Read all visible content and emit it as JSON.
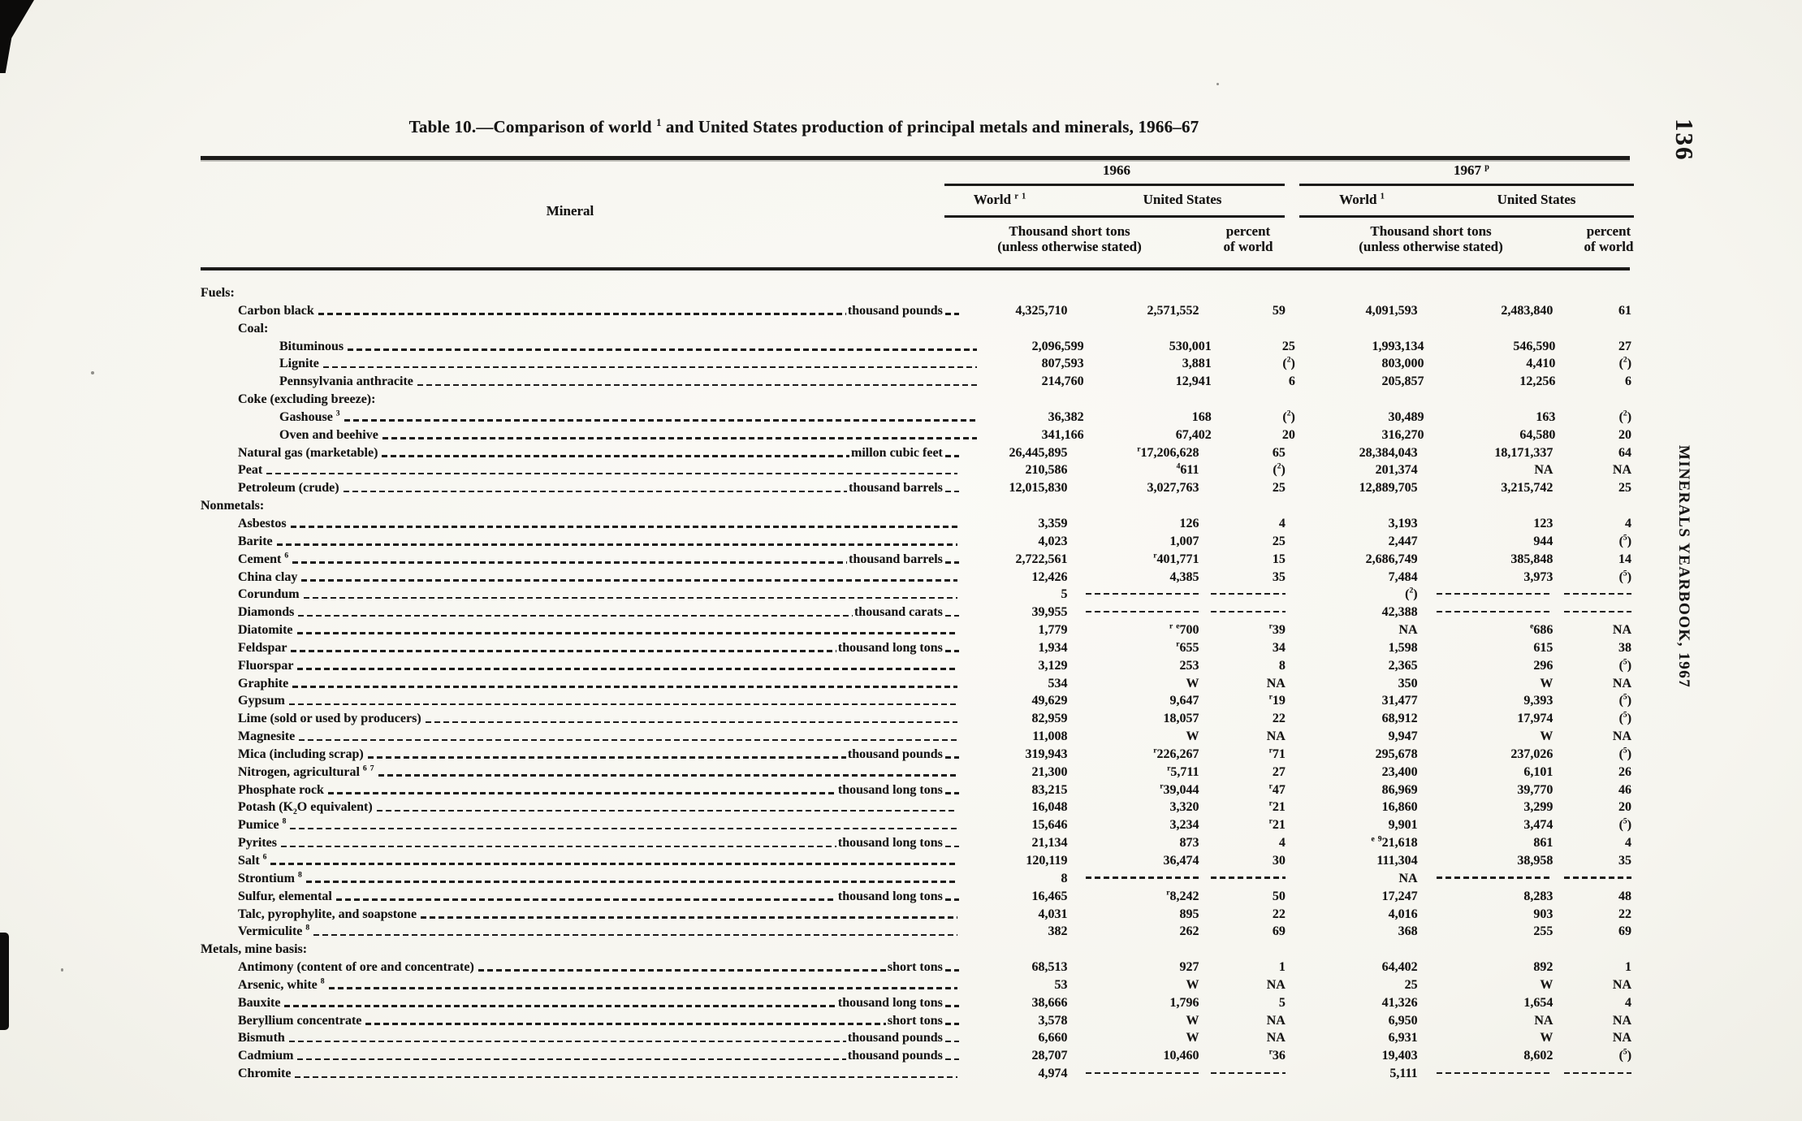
{
  "page": {
    "number": "136",
    "margin_title": "MINERALS YEARBOOK, 1967"
  },
  "table": {
    "title": "Table 10.—Comparison of world {1} and United States production of principal metals and minerals, 1966–67",
    "mineral_header": "Mineral",
    "year_groups": [
      {
        "year": "1966",
        "world": "World {r} {1}",
        "us": "United States"
      },
      {
        "year": "1967 {p}",
        "world": "World {1}",
        "us": "United States"
      }
    ],
    "subheaders": {
      "tons_line1": "Thousand short tons",
      "tons_line2": "(unless otherwise stated)",
      "pct_line1": "percent",
      "pct_line2": "of world"
    },
    "rows": [
      {
        "label": "Fuels:",
        "indent": 0,
        "leader": false,
        "values": [
          "",
          "",
          "",
          "",
          "",
          ""
        ]
      },
      {
        "label": "Carbon black",
        "indent": 1,
        "unit": "thousand pounds",
        "values": [
          "4,325,710",
          "2,571,552",
          "59",
          "4,091,593",
          "2,483,840",
          "61"
        ]
      },
      {
        "label": "Coal:",
        "indent": 1,
        "leader": false,
        "values": [
          "",
          "",
          "",
          "",
          "",
          ""
        ]
      },
      {
        "label": "Bituminous",
        "indent": 2,
        "values": [
          "2,096,599",
          "530,001",
          "25",
          "1,993,134",
          "546,590",
          "27"
        ]
      },
      {
        "label": "Lignite",
        "indent": 2,
        "values": [
          "807,593",
          "3,881",
          "({2})",
          "803,000",
          "4,410",
          "({2})"
        ]
      },
      {
        "label": "Pennsylvania anthracite",
        "indent": 2,
        "values": [
          "214,760",
          "12,941",
          "6",
          "205,857",
          "12,256",
          "6"
        ]
      },
      {
        "label": "Coke (excluding breeze):",
        "indent": 1,
        "leader": false,
        "values": [
          "",
          "",
          "",
          "",
          "",
          ""
        ]
      },
      {
        "label": "Gashouse {3}",
        "indent": 2,
        "values": [
          "36,382",
          "168",
          "({2})",
          "30,489",
          "163",
          "({2})"
        ]
      },
      {
        "label": "Oven and beehive",
        "indent": 2,
        "values": [
          "341,166",
          "67,402",
          "20",
          "316,270",
          "64,580",
          "20"
        ]
      },
      {
        "label": "Natural gas (marketable)",
        "indent": 1,
        "unit": "millon cubic feet",
        "values": [
          "26,445,895",
          "{r}17,206,628",
          "65",
          "28,384,043",
          "18,171,337",
          "64"
        ]
      },
      {
        "label": "Peat",
        "indent": 1,
        "values": [
          "210,586",
          "{4}611",
          "({2})",
          "201,374",
          "NA",
          "NA"
        ]
      },
      {
        "label": "Petroleum (crude)",
        "indent": 1,
        "unit": "thousand barrels",
        "values": [
          "12,015,830",
          "3,027,763",
          "25",
          "12,889,705",
          "3,215,742",
          "25"
        ]
      },
      {
        "label": "Nonmetals:",
        "indent": 0,
        "leader": false,
        "values": [
          "",
          "",
          "",
          "",
          "",
          ""
        ]
      },
      {
        "label": "Asbestos",
        "indent": 1,
        "values": [
          "3,359",
          "126",
          "4",
          "3,193",
          "123",
          "4"
        ]
      },
      {
        "label": "Barite",
        "indent": 1,
        "values": [
          "4,023",
          "1,007",
          "25",
          "2,447",
          "944",
          "({5})"
        ]
      },
      {
        "label": "Cement {6}",
        "indent": 1,
        "unit": "thousand barrels",
        "values": [
          "2,722,561",
          "{r}401,771",
          "15",
          "2,686,749",
          "385,848",
          "14"
        ]
      },
      {
        "label": "China clay",
        "indent": 1,
        "values": [
          "12,426",
          "4,385",
          "35",
          "7,484",
          "3,973",
          "({5})"
        ]
      },
      {
        "label": "Corundum",
        "indent": 1,
        "values": [
          "5",
          "~",
          "~",
          "({2})",
          "~",
          "~"
        ]
      },
      {
        "label": "Diamonds",
        "indent": 1,
        "unit": "thousand carats",
        "values": [
          "39,955",
          "~",
          "~",
          "42,388",
          "~",
          "~"
        ]
      },
      {
        "label": "Diatomite",
        "indent": 1,
        "values": [
          "1,779",
          "{r} {e}700",
          "{r}39",
          "NA",
          "{e}686",
          "NA"
        ]
      },
      {
        "label": "Feldspar",
        "indent": 1,
        "unit": "thousand long tons",
        "values": [
          "1,934",
          "{r}655",
          "34",
          "1,598",
          "615",
          "38"
        ]
      },
      {
        "label": "Fluorspar",
        "indent": 1,
        "values": [
          "3,129",
          "253",
          "8",
          "2,365",
          "296",
          "({5})"
        ]
      },
      {
        "label": "Graphite",
        "indent": 1,
        "values": [
          "534",
          "W",
          "NA",
          "350",
          "W",
          "NA"
        ]
      },
      {
        "label": "Gypsum",
        "indent": 1,
        "values": [
          "49,629",
          "9,647",
          "{r}19",
          "31,477",
          "9,393",
          "({5})"
        ]
      },
      {
        "label": "Lime (sold or used by producers)",
        "indent": 1,
        "values": [
          "82,959",
          "18,057",
          "22",
          "68,912",
          "17,974",
          "({5})"
        ]
      },
      {
        "label": "Magnesite",
        "indent": 1,
        "values": [
          "11,008",
          "W",
          "NA",
          "9,947",
          "W",
          "NA"
        ]
      },
      {
        "label": "Mica (including scrap)",
        "indent": 1,
        "unit": "thousand pounds",
        "values": [
          "319,943",
          "{r}226,267",
          "{r}71",
          "295,678",
          "237,026",
          "({5})"
        ]
      },
      {
        "label": "Nitrogen, agricultural {6} {7}",
        "indent": 1,
        "values": [
          "21,300",
          "{r}5,711",
          "27",
          "23,400",
          "6,101",
          "26"
        ]
      },
      {
        "label": "Phosphate rock",
        "indent": 1,
        "unit": "thousand long tons",
        "values": [
          "83,215",
          "{r}39,044",
          "{r}47",
          "86,969",
          "39,770",
          "46"
        ]
      },
      {
        "label": "Potash (K{_2}O equivalent)",
        "indent": 1,
        "values": [
          "16,048",
          "3,320",
          "{r}21",
          "16,860",
          "3,299",
          "20"
        ]
      },
      {
        "label": "Pumice {8}",
        "indent": 1,
        "values": [
          "15,646",
          "3,234",
          "{r}21",
          "9,901",
          "3,474",
          "({5})"
        ]
      },
      {
        "label": "Pyrites",
        "indent": 1,
        "unit": "thousand long tons",
        "values": [
          "21,134",
          "873",
          "4",
          "{e} {9}21,618",
          "861",
          "4"
        ]
      },
      {
        "label": "Salt {6}",
        "indent": 1,
        "values": [
          "120,119",
          "36,474",
          "30",
          "111,304",
          "38,958",
          "35"
        ]
      },
      {
        "label": "Strontium {8}",
        "indent": 1,
        "values": [
          "8",
          "~",
          "~",
          "NA",
          "~",
          "~"
        ]
      },
      {
        "label": "Sulfur, elemental",
        "indent": 1,
        "unit": "thousand long tons",
        "values": [
          "16,465",
          "{r}8,242",
          "50",
          "17,247",
          "8,283",
          "48"
        ]
      },
      {
        "label": "Talc, pyrophylite, and soapstone",
        "indent": 1,
        "values": [
          "4,031",
          "895",
          "22",
          "4,016",
          "903",
          "22"
        ]
      },
      {
        "label": "Vermiculite {8}",
        "indent": 1,
        "values": [
          "382",
          "262",
          "69",
          "368",
          "255",
          "69"
        ]
      },
      {
        "label": "Metals, mine basis:",
        "indent": 0,
        "leader": false,
        "values": [
          "",
          "",
          "",
          "",
          "",
          ""
        ]
      },
      {
        "label": "Antimony (content of ore and concentrate)",
        "indent": 1,
        "unit": "short tons",
        "values": [
          "68,513",
          "927",
          "1",
          "64,402",
          "892",
          "1"
        ]
      },
      {
        "label": "Arsenic, white {8}",
        "indent": 1,
        "values": [
          "53",
          "W",
          "NA",
          "25",
          "W",
          "NA"
        ]
      },
      {
        "label": "Bauxite",
        "indent": 1,
        "unit": "thousand long tons",
        "values": [
          "38,666",
          "1,796",
          "5",
          "41,326",
          "1,654",
          "4"
        ]
      },
      {
        "label": "Beryllium concentrate",
        "indent": 1,
        "unit": "short tons",
        "values": [
          "3,578",
          "W",
          "NA",
          "6,950",
          "NA",
          "NA"
        ]
      },
      {
        "label": "Bismuth",
        "indent": 1,
        "unit": "thousand pounds",
        "values": [
          "6,660",
          "W",
          "NA",
          "6,931",
          "W",
          "NA"
        ]
      },
      {
        "label": "Cadmium",
        "indent": 1,
        "unit": "thousand pounds",
        "values": [
          "28,707",
          "10,460",
          "{r}36",
          "19,403",
          "8,602",
          "({5})"
        ]
      },
      {
        "label": "Chromite",
        "indent": 1,
        "values": [
          "4,974",
          "~",
          "~",
          "5,111",
          "~",
          "~"
        ]
      }
    ]
  }
}
